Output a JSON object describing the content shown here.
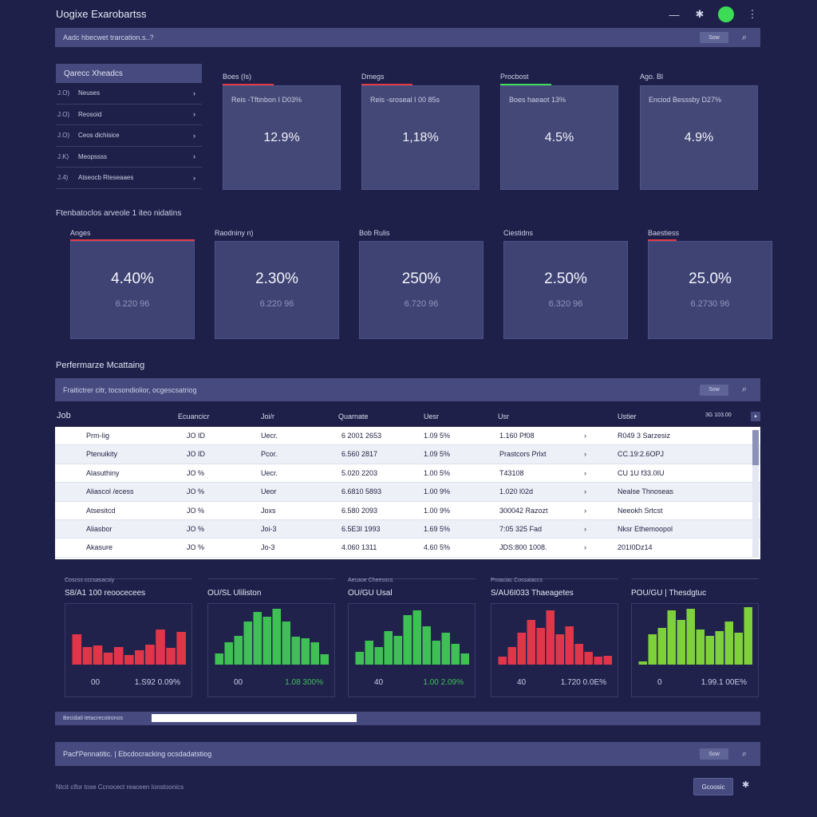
{
  "app": {
    "title": "Uogixe Exarobartss"
  },
  "top_icons": {
    "minimize": "—",
    "star": "✱",
    "more": "⋮"
  },
  "top_search": {
    "text": "Aadc hbecwet trarcation.s..?",
    "button": "Sow"
  },
  "list_panel": {
    "title": "Qarecc Xheadcs",
    "items": [
      {
        "num": "J.O)",
        "label": "Neuses"
      },
      {
        "num": "J.O)",
        "label": "Reosoid"
      },
      {
        "num": "J.O)",
        "label": "Ceos dichisice"
      },
      {
        "num": "J.K)",
        "label": "Meopssss"
      },
      {
        "num": "J.4)",
        "label": "Atseocb Rteseaaes"
      }
    ]
  },
  "kpi_row1": [
    {
      "label": "Boes (Is)",
      "sub": "Reis -Tftinbon I D03%",
      "value": "12.9%",
      "accent": "#e23a44"
    },
    {
      "label": "Dmegs",
      "sub": "Reis -sroseal I 00 85s",
      "value": "1,18%",
      "accent": "#e23a44"
    },
    {
      "label": "Procbost",
      "sub": "Boes haeaot 13%",
      "value": "4.5%",
      "accent": "#3ddc57"
    },
    {
      "label": "Ago. Bl",
      "sub": "Enciod Besssby D27%",
      "value": "4.9%",
      "accent": ""
    }
  ],
  "row2": {
    "title": "Ftenbatoclos arveole 1 iteo nidatins",
    "cards": [
      {
        "label": "Anges",
        "value": "4.40%",
        "sub": "6.220 96",
        "accent": "#e23a44"
      },
      {
        "label": "Raodniny n)",
        "value": "2.30%",
        "sub": "6.220 96",
        "accent": ""
      },
      {
        "label": "Bob Rulis",
        "value": "250%",
        "sub": "6.720 96",
        "accent": ""
      },
      {
        "label": "Ciestidns",
        "value": "2.50%",
        "sub": "6.320 96",
        "accent": ""
      },
      {
        "label": "Baestiess",
        "value": "25.0%",
        "sub": "6.2730 96",
        "accent": "#e23a44"
      }
    ]
  },
  "table_section": {
    "title": "Perfermarze Mcattaing",
    "search_text": "Fraitictrer citr, tocsondiolior, ocgescsatriog",
    "search_button": "Sow",
    "columns": [
      "Job",
      "Ecuancicr",
      "Joi/r",
      "Quarnate",
      "Uesr",
      "Usr",
      "Ustier"
    ],
    "count_label": "3G   103.00",
    "rows": [
      [
        "Prm-Iig",
        "JO ID",
        "Uecr.",
        "6 2001 2653",
        "1.09 5%",
        "1.160 Pf08",
        "R049 3 Sarzesiz"
      ],
      [
        "Ptenuikity",
        "JO ID",
        "Pcor.",
        "6.560 2817",
        "1.09 5%",
        "Prastcors Prlxt",
        "CC.19:2.6OPJ"
      ],
      [
        "Alasuthiny",
        "JO %",
        "Uecr.",
        "5.020 2203",
        "1.00 5%",
        "T43108",
        "CU 1U f33.0IU"
      ],
      [
        "Aliascol /ecess",
        "JO %",
        "Ueor",
        "6.6810 5893",
        "1.00 9%",
        "1.020 l02d",
        "Nealse Thnoseas"
      ],
      [
        "Atsesitcd",
        "JO %",
        "Joxs",
        "6.580 2093",
        "1.00 9%",
        "300042 Razozt",
        "Neeokh Srtcst"
      ],
      [
        "Aliasbor",
        "JO %",
        "Joi-3",
        "6.5E3I 1993",
        "1.69 5%",
        "7:05 325 Fad",
        "Nksr Ethemoopol"
      ],
      [
        "Akasure",
        "JO %",
        "Jo-3",
        "4.060 1311",
        "4.60 5%",
        "JDS:800 1008.",
        "201I0Dz14"
      ]
    ]
  },
  "charts": [
    {
      "sub": "Coscss cccsasacsiy",
      "title": "S8/A1 100 reoocecees",
      "start": "00",
      "end": "1.S92 0.09%",
      "color": "#e0364a",
      "values": [
        38,
        22,
        24,
        15,
        22,
        12,
        18,
        25,
        44,
        21,
        41
      ],
      "end_color": "#c9cde6"
    },
    {
      "sub": "",
      "title": "OU/SL Uliliston",
      "start": "00",
      "end": "1.08 300%",
      "color": "#3fc055",
      "values": [
        14,
        28,
        36,
        54,
        66,
        60,
        70,
        54,
        35,
        33,
        28,
        13
      ],
      "end_color": "#3fc055"
    },
    {
      "sub": "Aecaoe Cheesscs",
      "title": "OU/GU Usal",
      "start": "40",
      "end": "1.00 2.09%",
      "color": "#3fc055",
      "values": [
        16,
        30,
        22,
        42,
        36,
        62,
        68,
        48,
        30,
        40,
        26,
        14
      ],
      "end_color": "#3fc055"
    },
    {
      "sub": "Proaciac Cossaiaccs",
      "title": "S/AU6I033 Thaeagetes",
      "start": "40",
      "end": "1.720 0.0E%",
      "color": "#e0364a",
      "values": [
        10,
        22,
        40,
        56,
        46,
        68,
        38,
        48,
        26,
        16,
        10,
        11
      ],
      "end_color": "#c9cde6"
    },
    {
      "sub": "",
      "title": "POU/GU | Thesdgtuc",
      "start": "0",
      "end": "1.99.1 00E%",
      "color": "#7ed13a",
      "values": [
        4,
        38,
        46,
        68,
        56,
        70,
        44,
        36,
        42,
        54,
        40,
        72
      ],
      "end_color": "#c9cde6"
    }
  ],
  "progress": {
    "label": "Becidati tetacrecotronos",
    "value": 0.32
  },
  "footer": {
    "text": "Pacf'Pennatitic. | Ebcdocracking   ocsdadatstiog",
    "button": "Sow",
    "note": "Ntcit clfor tose Ccnocect reaceen Ionstoonics",
    "action": "Gcoosic",
    "star": "✱"
  },
  "colors": {
    "background": "#1f2049",
    "panel": "#464a7e",
    "card": "#444876",
    "red": "#e23a44",
    "green": "#3ddc57"
  },
  "icons": {
    "search": "search-icon",
    "status": "status-dot-icon",
    "chevron": "chevron-right-icon"
  }
}
